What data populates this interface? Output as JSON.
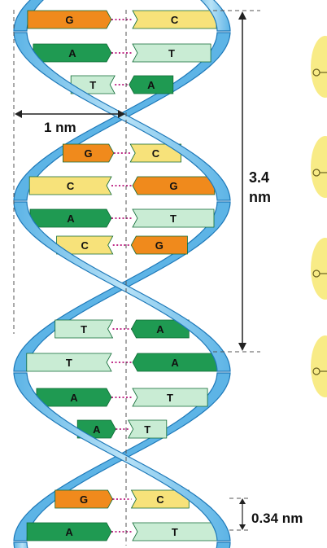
{
  "labels": {
    "width": "1 nm",
    "pitch_value": "3.4",
    "pitch_unit": "nm",
    "rise": "0.34 nm"
  },
  "base_pairs": [
    {
      "left": "G",
      "right": "C"
    },
    {
      "left": "A",
      "right": "T"
    },
    {
      "left": "T",
      "right": "A"
    },
    {
      "left": "G",
      "right": "C"
    },
    {
      "left": "C",
      "right": "G"
    },
    {
      "left": "A",
      "right": "T"
    },
    {
      "left": "C",
      "right": "G"
    },
    {
      "left": "T",
      "right": "A"
    },
    {
      "left": "T",
      "right": "A"
    },
    {
      "left": "A",
      "right": "T"
    },
    {
      "left": "A",
      "right": "T"
    },
    {
      "left": "G",
      "right": "C"
    },
    {
      "left": "A",
      "right": "T"
    }
  ],
  "colors": {
    "backbone_light": "#9fd3f1",
    "backbone_mid": "#5db4e6",
    "backbone_edge": "#1d78b8",
    "A": "#1f9a52",
    "T": "#c9ecd4",
    "G": "#f08a1c",
    "C": "#f7e27a",
    "hbond": "#c0308a",
    "guide": "#555555",
    "side_panel": "#f8eb86"
  }
}
